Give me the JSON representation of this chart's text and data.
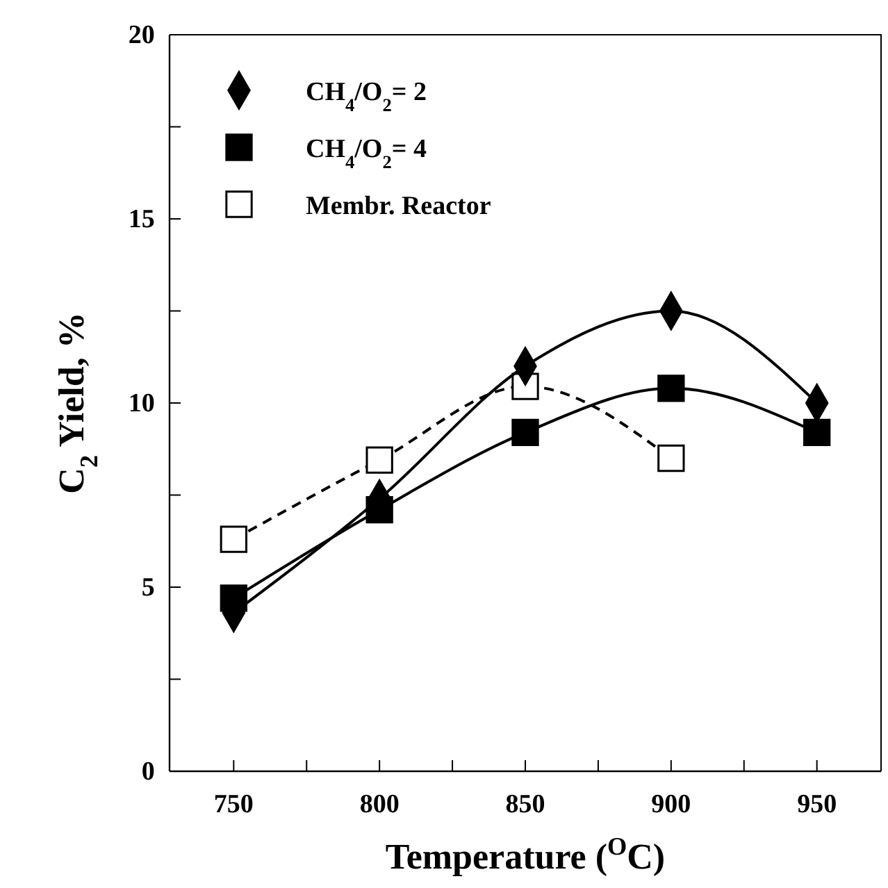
{
  "chart_data": {
    "type": "line",
    "xlabel": "Temperature ($^{O}$C)",
    "ylabel": "C$_{2}$ Yield, %",
    "xlim": [
      728,
      972
    ],
    "ylim": [
      0,
      20
    ],
    "xticks": [
      750,
      {
        "value": 775,
        "label": null
      },
      800,
      {
        "value": 825,
        "label": null
      },
      850,
      {
        "value": 875,
        "label": null
      },
      900,
      {
        "value": 925,
        "label": null
      },
      950
    ],
    "yticks": [
      0,
      {
        "value": 2.5,
        "label": null
      },
      5,
      {
        "value": 7.5,
        "label": null
      },
      10,
      {
        "value": 12.5,
        "label": null
      },
      15,
      {
        "value": 17.5,
        "label": null
      },
      20
    ],
    "legend": "top left",
    "grid": false,
    "series": [
      {
        "name": "CH$_{4}$/O$_{2}$= 2",
        "color": "#000000",
        "marker": "diamond",
        "line_style": "solid",
        "x": [
          750,
          800,
          850,
          900,
          950
        ],
        "values": [
          4.3,
          7.4,
          11.0,
          12.5,
          10.0
        ]
      },
      {
        "name": "CH$_{4}$/O$_{2}$= 4",
        "color": "#000000",
        "marker": "square",
        "line_style": "solid",
        "x": [
          750,
          800,
          850,
          900,
          950
        ],
        "values": [
          4.7,
          7.1,
          9.2,
          10.4,
          9.2
        ]
      },
      {
        "name": "Membr. Reactor",
        "color": "#000000",
        "marker": "square",
        "line_style": "dashed",
        "x": [
          750,
          800,
          850,
          900
        ],
        "values": [
          6.3,
          8.45,
          10.45,
          8.5
        ]
      }
    ]
  }
}
